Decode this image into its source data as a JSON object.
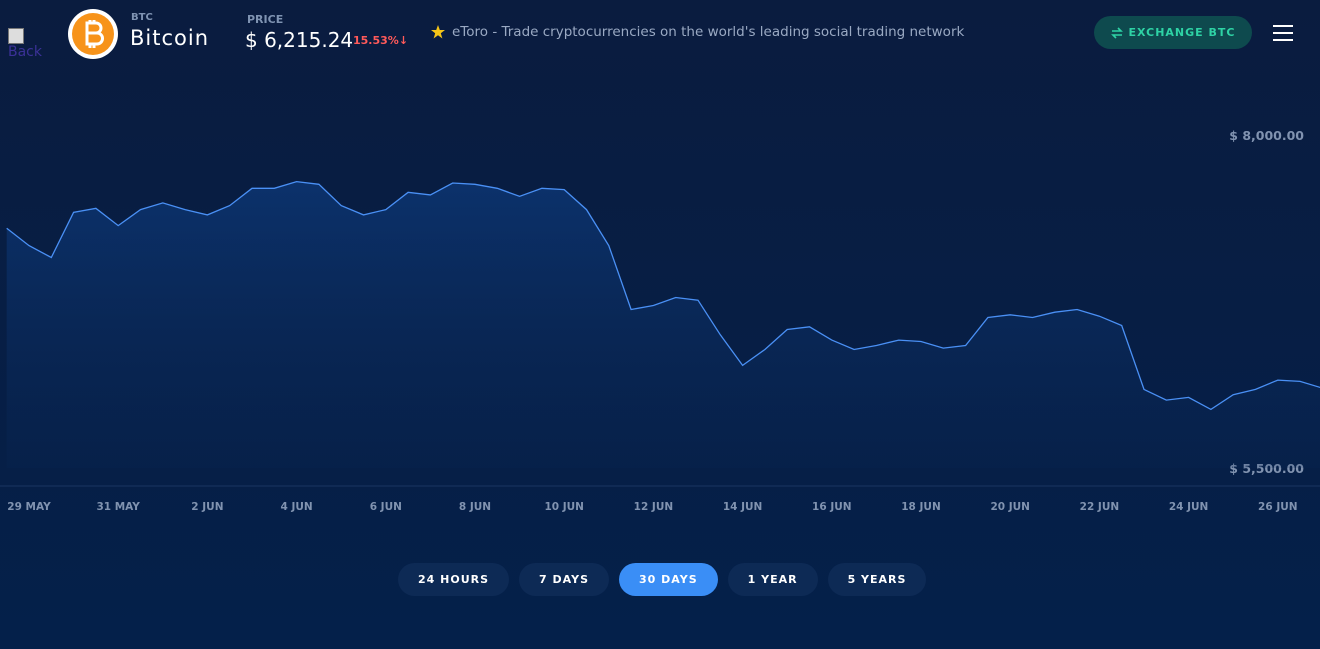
{
  "header": {
    "back_alt": "Back",
    "symbol": "BTC",
    "name": "Bitcoin",
    "price_label": "PRICE",
    "price": "$ 6,215.24",
    "change": "15.53%↓",
    "promo": "eToro - Trade cryptocurrencies on the world's leading social trading network",
    "exchange_button": "EXCHANGE BTC"
  },
  "chart_data": {
    "type": "line",
    "color": "#4a90f5",
    "categories": [
      null,
      "29 MAY",
      null,
      null,
      null,
      "31 MAY",
      null,
      null,
      null,
      "2 JUN",
      null,
      null,
      null,
      "4 JUN",
      null,
      null,
      null,
      "6 JUN",
      null,
      null,
      null,
      "8 JUN",
      null,
      null,
      null,
      "10 JUN",
      null,
      null,
      null,
      "12 JUN",
      null,
      null,
      null,
      "14 JUN",
      null,
      null,
      null,
      "16 JUN",
      null,
      null,
      null,
      "18 JUN",
      null,
      null,
      null,
      "20 JUN",
      null,
      null,
      null,
      "22 JUN",
      null,
      null,
      null,
      "24 JUN",
      null,
      null,
      null,
      "26 JUN",
      null,
      null
    ],
    "values": [
      7300,
      7170,
      7080,
      7420,
      7450,
      7320,
      7440,
      7490,
      7440,
      7400,
      7470,
      7600,
      7600,
      7650,
      7630,
      7470,
      7400,
      7440,
      7570,
      7550,
      7640,
      7630,
      7600,
      7540,
      7600,
      7590,
      7440,
      7170,
      6690,
      6720,
      6780,
      6760,
      6500,
      6270,
      6390,
      6540,
      6560,
      6460,
      6390,
      6420,
      6460,
      6450,
      6400,
      6420,
      6630,
      6650,
      6630,
      6670,
      6690,
      6640,
      6570,
      6090,
      6010,
      6030,
      5940,
      6050,
      6090,
      6160,
      6150,
      6100
    ],
    "ylim": [
      5500,
      8000
    ],
    "yticks": [
      {
        "value": 8000,
        "label": "$ 8,000.00"
      },
      {
        "value": 5500,
        "label": "$ 5,500.00"
      }
    ],
    "grid": false
  },
  "range_buttons": {
    "options": [
      "24 HOURS",
      "7 DAYS",
      "30 DAYS",
      "1 YEAR",
      "5 YEARS"
    ],
    "active": 2
  }
}
